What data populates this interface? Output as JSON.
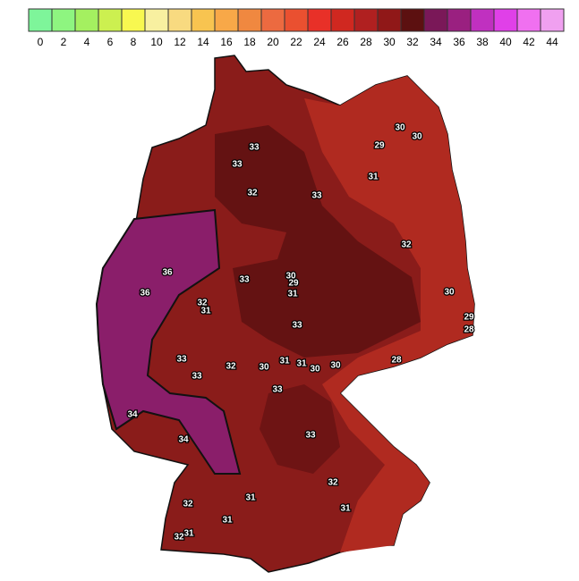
{
  "legend": {
    "levels": [
      0,
      2,
      4,
      6,
      8,
      10,
      12,
      14,
      16,
      18,
      20,
      22,
      24,
      26,
      28,
      30,
      32,
      34,
      36,
      38,
      40,
      42,
      44
    ],
    "colors": [
      "#7ef59a",
      "#8ef580",
      "#a4f060",
      "#ccf050",
      "#f8f850",
      "#f8f0a0",
      "#f8da80",
      "#f8c450",
      "#f8a848",
      "#f08840",
      "#ec6a40",
      "#ea5030",
      "#e83028",
      "#d02820",
      "#b02020",
      "#901818",
      "#5c1010",
      "#7a1858",
      "#9a2080",
      "#c030c0",
      "#e040e8",
      "#f070f0",
      "#f0a0f0"
    ]
  },
  "contour_labels": [
    33,
    33,
    32,
    33,
    31,
    29,
    30,
    30,
    32,
    36,
    36,
    33,
    30,
    29,
    31,
    32,
    31,
    33,
    30,
    29,
    28,
    33,
    33,
    32,
    30,
    31,
    31,
    30,
    30,
    28,
    33,
    34,
    34,
    33,
    32,
    31,
    31,
    32,
    31,
    31,
    32
  ]
}
